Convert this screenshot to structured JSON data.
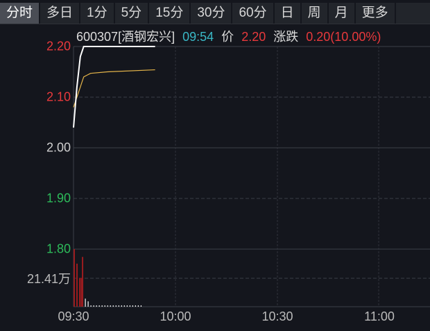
{
  "tabs": [
    "分时",
    "多日",
    "1分",
    "5分",
    "15分",
    "30分",
    "60分",
    "日",
    "周",
    "月",
    "更多"
  ],
  "active_tab": 0,
  "header": {
    "code": "600307",
    "name": "[酒钢宏兴]",
    "time": "09:54",
    "price_label": "价",
    "price": "2.20",
    "change_label": "涨跌",
    "change": "0.20(10.00%)"
  },
  "colors": {
    "up": "#e8393c",
    "down": "#2dbb5a",
    "neutral": "#cfcfcf",
    "time": "#3ab8c6",
    "avg": "#e5b54a",
    "price_line": "#ffffff",
    "volume_up": "#9b1c1f",
    "volume_flat": "#ffffff"
  },
  "chart_data": {
    "type": "line",
    "price_axis": {
      "ticks": [
        "2.20",
        "2.10",
        "2.00",
        "1.90",
        "1.80"
      ],
      "range": [
        1.8,
        2.2
      ],
      "prev_close": 2.0
    },
    "volume_axis": {
      "tick": "21.41万",
      "value": 21.41
    },
    "x_ticks": [
      "09:30",
      "10:00",
      "10:30",
      "11:00"
    ],
    "price": {
      "x": [
        "09:30",
        "09:31",
        "09:32",
        "09:33",
        "09:54"
      ],
      "y": [
        2.04,
        2.12,
        2.18,
        2.2,
        2.2
      ]
    },
    "avg_price": {
      "x": [
        "09:30",
        "09:31",
        "09:32",
        "09:33",
        "09:35",
        "09:40",
        "09:54"
      ],
      "y": [
        2.08,
        2.1,
        2.12,
        2.14,
        2.147,
        2.15,
        2.154
      ]
    },
    "volume": {
      "minutes": [
        0,
        1,
        2,
        2.6,
        3,
        4,
        5,
        6,
        7,
        8,
        9,
        10,
        11,
        12,
        13,
        14,
        15,
        16,
        17,
        18,
        19,
        20,
        21,
        22,
        23,
        24
      ],
      "values": [
        42.8,
        32,
        21.4,
        21.4,
        37,
        6,
        4,
        1,
        1,
        1,
        1,
        1,
        1,
        1,
        1,
        1,
        1,
        1,
        1,
        1,
        1,
        1,
        1,
        1,
        1,
        1
      ],
      "up": [
        true,
        true,
        true,
        true,
        true,
        false,
        false,
        false,
        false,
        false,
        false,
        false,
        false,
        false,
        false,
        false,
        false,
        false,
        false,
        false,
        false,
        false,
        false,
        false,
        false,
        false
      ]
    }
  }
}
